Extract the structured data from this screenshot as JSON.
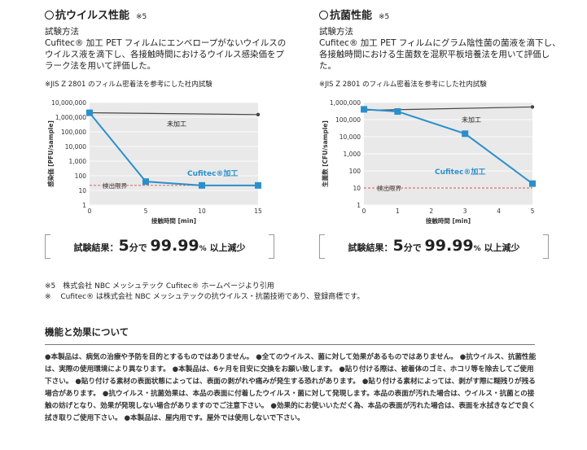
{
  "left_panel": {
    "title": "抗ウイルス性能",
    "note": "※5",
    "method_heading": "試験方法",
    "method_body": "Cufitec® 加工 PET フィルムにエンベロープがないウイルスのウイルス液を滴下し、各接触時間におけるウイルス感染価をプラーク法を用いて評価した。",
    "jis_note": "※JIS Z 2801 のフィルム密着法を参考にした社内試験",
    "result": {
      "prefix": "試験結果：",
      "minutes": "5",
      "unit_min": "分で",
      "percent": "99.99",
      "percent_sign": "%",
      "suffix": "以上減少"
    }
  },
  "right_panel": {
    "title": "抗菌性能",
    "note": "※5",
    "method_heading": "試験方法",
    "method_body": "Cufitec® 加工 PET フィルムにグラム陰性菌の菌液を滴下し、各接触時間における生菌数を混釈平板培養法を用いて評価した。",
    "jis_note": "※JIS Z 2801 のフィルム密着法を参考にした社内試験",
    "result": {
      "prefix": "試験結果：",
      "minutes": "5",
      "unit_min": "分で",
      "percent": "99.99",
      "percent_sign": "%",
      "suffix": "以上減少"
    }
  },
  "chart_data": [
    {
      "type": "line",
      "ylabel": "感染価 [PFU/sample]",
      "xlabel": "接触時間 [min]",
      "yscale": "log",
      "ylim": [
        1,
        10000000
      ],
      "xlim": [
        0,
        15
      ],
      "x_ticks": [
        "0",
        "5",
        "10",
        "15"
      ],
      "y_ticks": [
        "1",
        "10",
        "100",
        "1,000",
        "10,000",
        "100,000",
        "1,000,000",
        "10,000,000"
      ],
      "detection_limit": {
        "label": "検出限界",
        "value": 22
      },
      "series": [
        {
          "name": "未加工",
          "x": [
            0,
            15
          ],
          "y": [
            2000000,
            1500000
          ],
          "color": "#444444"
        },
        {
          "name": "Cufitec®加工",
          "x": [
            0,
            5,
            10,
            15
          ],
          "y": [
            2000000,
            40,
            22,
            22
          ],
          "color": "#2b8fcc"
        }
      ]
    },
    {
      "type": "line",
      "ylabel": "生菌数 [CFU/sample]",
      "xlabel": "接触時間 [min]",
      "yscale": "log",
      "ylim": [
        1,
        1000000
      ],
      "xlim": [
        0,
        5
      ],
      "x_ticks": [
        "0",
        "1",
        "2",
        "3",
        "4",
        "5"
      ],
      "y_ticks": [
        "1",
        "10",
        "100",
        "1,000",
        "10,000",
        "100,000",
        "1,000,000"
      ],
      "detection_limit": {
        "label": "検出限界",
        "value": 10
      },
      "series": [
        {
          "name": "未加工",
          "x": [
            0,
            5
          ],
          "y": [
            350000,
            550000
          ],
          "color": "#444444"
        },
        {
          "name": "Cufitec®加工",
          "x": [
            0,
            1,
            3,
            5
          ],
          "y": [
            400000,
            300000,
            15000,
            18
          ],
          "color": "#2b8fcc"
        }
      ]
    }
  ],
  "footnotes": [
    "※5　株式会社 NBC メッシュテック Cufitec® ホームページより引用",
    "※　 Cufitec® は株式会社 NBC メッシュテックの抗ウイルス・抗菌技術であり、登録商標です。"
  ],
  "section": {
    "title": "機能と効果について",
    "body": "●本製品は、病気の治療や予防を目的とするものではありません。 ●全てのウイルス、菌に対して効果があるものではありません。 ●抗ウイルス、抗菌性能は、実際の使用環境により異なります。 ●本製品は、6ヶ月を目安に交換をお願い致します。 ●貼り付ける際は、被着体のゴミ、ホコリ等を除去してご使用下さい。 ●貼り付ける素材の表面状態によっては、表面の剥がれや痛みが発生する恐れがあります。 ●貼り付ける素材によっては、剥がす際に糊残りが残る場合があります。 ●抗ウイルス・抗菌効果は、本品の表面に付着したウイルス・菌に対して発現します。本品の表面が汚れた場合は、ウイルス・抗菌との接触の妨げとなり、効果が発現しない場合がありますのでご注意下さい。 ●効果的にお使いいただく為、本品の表面が汚れた場合は、表面を水拭きなどで良く拭き取りご使用下さい。 ●本製品は、屋内用です。屋外では使用しないで下さい。"
  }
}
